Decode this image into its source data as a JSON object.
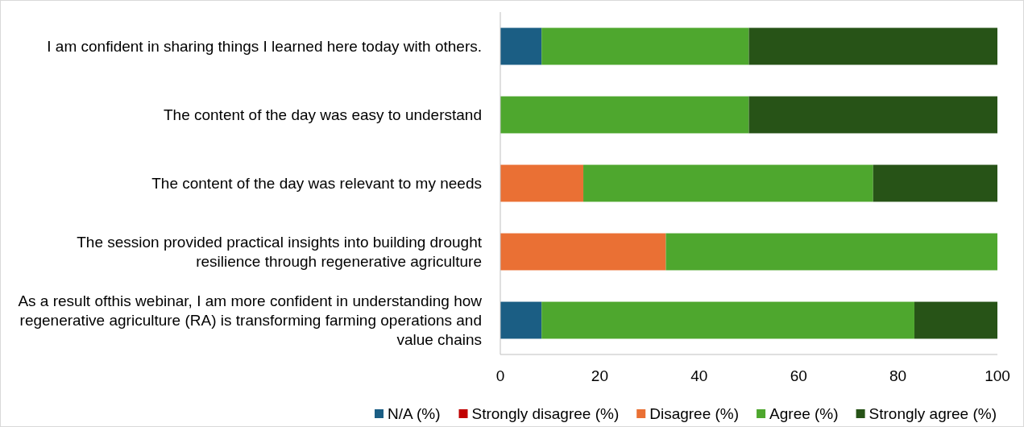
{
  "chart_data": {
    "type": "bar",
    "orientation": "horizontal",
    "stacked": true,
    "categories": [
      "I am confident in sharing things I learned here today with others.",
      "The content of the day was easy to understand",
      "The content of the day was relevant to my needs",
      "The session provided practical insights into building drought resilience through regenerative agriculture",
      "As a result ofthis webinar, I am more confident in understanding how regenerative agriculture (RA) is transforming farming operations and value chains"
    ],
    "series": [
      {
        "name": "N/A (%)",
        "color": "#1b5e84",
        "values": [
          8.3,
          0,
          0,
          0,
          8.3
        ]
      },
      {
        "name": "Strongly disagree (%)",
        "color": "#c00000",
        "values": [
          0,
          0,
          0,
          0,
          0
        ]
      },
      {
        "name": "Disagree (%)",
        "color": "#ea7034",
        "values": [
          0,
          0,
          16.7,
          33.3,
          0
        ]
      },
      {
        "name": "Agree (%)",
        "color": "#4ea72e",
        "values": [
          41.7,
          50,
          58.3,
          66.7,
          75
        ]
      },
      {
        "name": "Strongly agree (%)",
        "color": "#275317",
        "values": [
          50,
          50,
          25,
          0,
          16.7
        ]
      }
    ],
    "xlim": [
      0,
      100
    ],
    "xticks": [
      0,
      20,
      40,
      60,
      80,
      100
    ],
    "grid": false,
    "legend": "bottom"
  }
}
